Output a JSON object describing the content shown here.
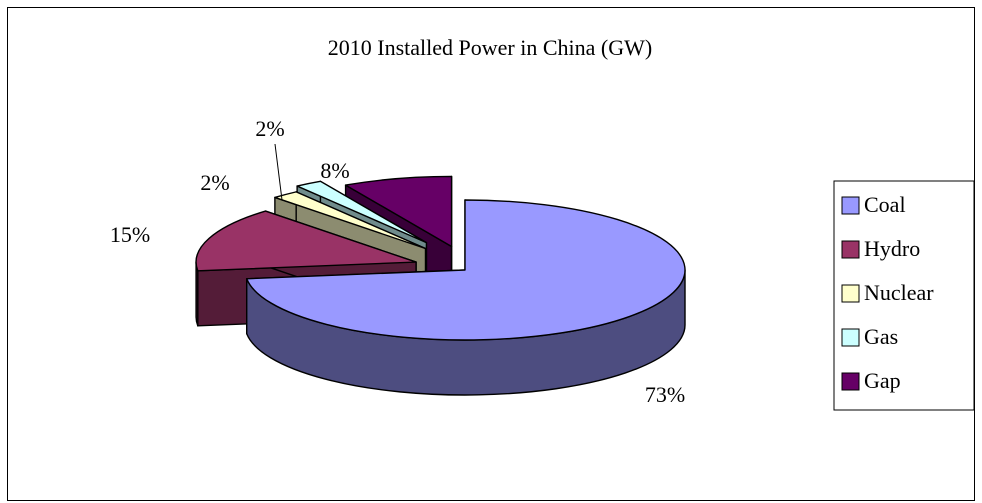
{
  "chart_data": {
    "type": "pie",
    "title": "2010 Installed Power in China (GW)",
    "categories": [
      "Coal",
      "Hydro",
      "Nuclear",
      "Gas",
      "Gap"
    ],
    "values": [
      73,
      15,
      2,
      2,
      8
    ],
    "labels": [
      "73%",
      "15%",
      "2%",
      "2%",
      "8%"
    ],
    "colors": [
      "#9999ff",
      "#993366",
      "#ffffcc",
      "#ccffff",
      "#660066"
    ],
    "exploded": true,
    "three_d": true,
    "legend_position": "right"
  }
}
